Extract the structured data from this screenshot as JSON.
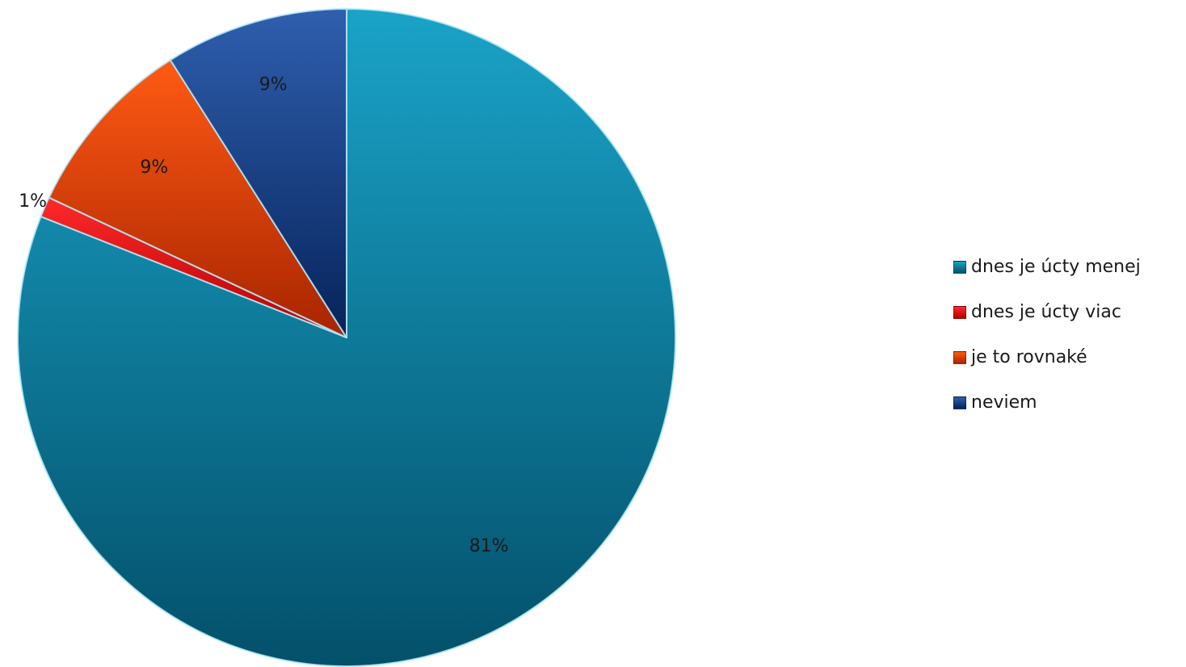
{
  "chart_data": {
    "type": "pie",
    "title": "",
    "start_angle": "12 o'clock, clockwise",
    "legend_position": "right",
    "slices": [
      {
        "label": "dnes je úcty menej",
        "value": 81,
        "value_label": "81%",
        "color": "#1aa3c8",
        "color_dark": "#03506a"
      },
      {
        "label": "dnes je úcty viac",
        "value": 1,
        "value_label": "1%",
        "color": "#ff2a2a",
        "color_dark": "#b00000"
      },
      {
        "label": "je to rovnaké",
        "value": 9,
        "value_label": "9%",
        "color": "#ff5a14",
        "color_dark": "#a82400"
      },
      {
        "label": "neviem",
        "value": 9,
        "value_label": "9%",
        "color": "#2f5fae",
        "color_dark": "#06235a"
      }
    ]
  }
}
